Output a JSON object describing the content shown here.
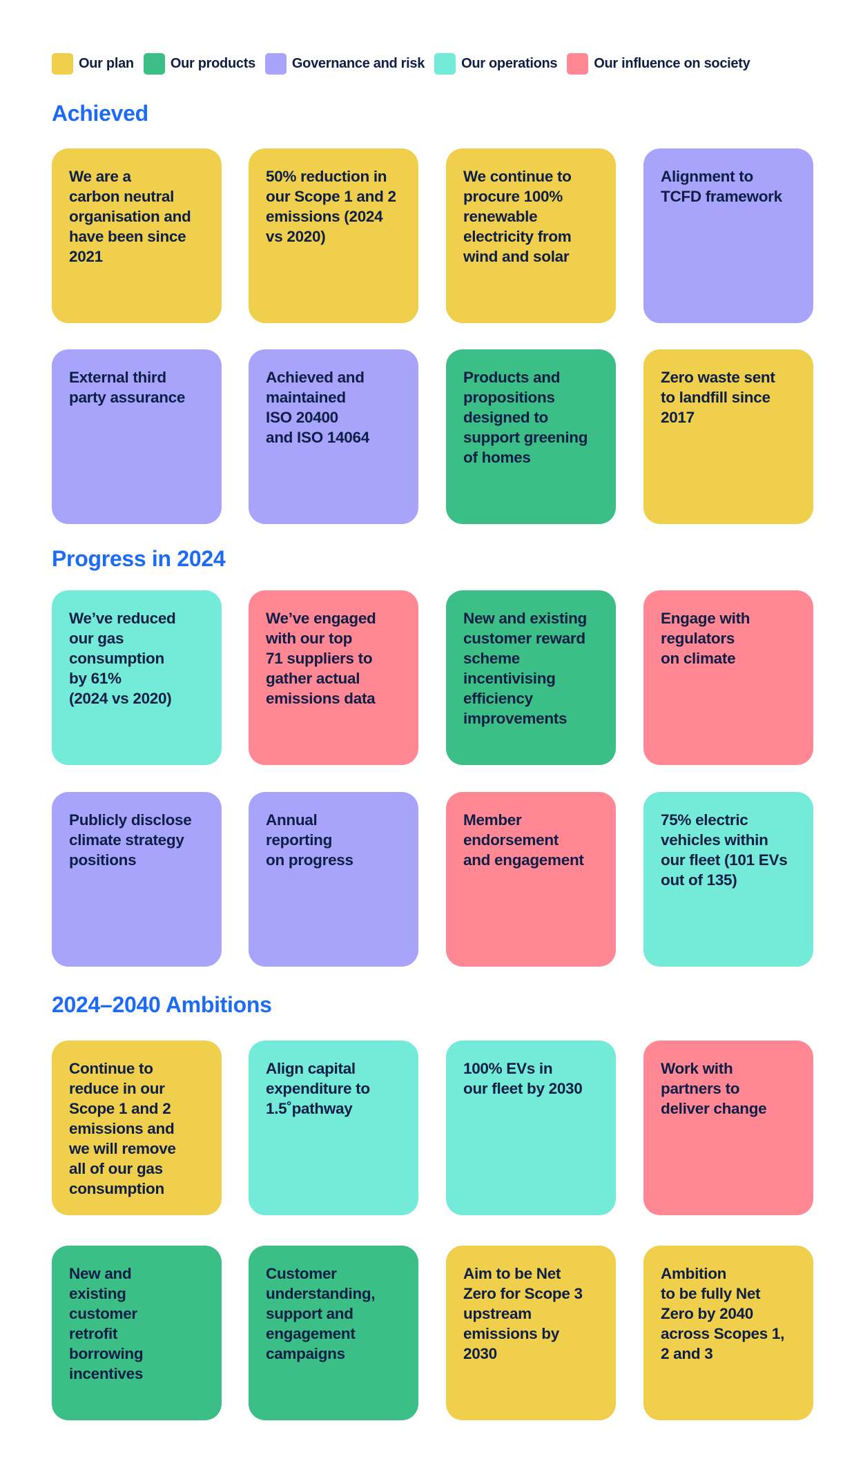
{
  "colors": {
    "plan": "#f0cf4d",
    "products": "#3bbf87",
    "governance": "#a8a4fc",
    "operations": "#74ead9",
    "influence": "#ff8894",
    "heading": "#1c6bf5",
    "text": "#0e1e45"
  },
  "legend": [
    {
      "label": "Our plan",
      "key": "plan"
    },
    {
      "label": "Our products",
      "key": "products"
    },
    {
      "label": "Governance and risk",
      "key": "governance"
    },
    {
      "label": "Our operations",
      "key": "operations"
    },
    {
      "label": "Our influence on society",
      "key": "influence"
    }
  ],
  "sections": [
    {
      "title": "Achieved",
      "cards": [
        {
          "text": "We are a\ncarbon neutral\norganisation and\nhave been since\n2021",
          "key": "plan"
        },
        {
          "text": "50% reduction in\nour Scope 1 and 2\nemissions (2024\nvs 2020)",
          "key": "plan"
        },
        {
          "text": "We continue to\nprocure 100%\nrenewable\nelectricity from\nwind and solar",
          "key": "plan"
        },
        {
          "text": "Alignment to\nTCFD framework",
          "key": "governance"
        },
        {
          "text": "External third\nparty assurance",
          "key": "governance"
        },
        {
          "text": "Achieved and\nmaintained\nISO 20400\nand ISO 14064",
          "key": "governance"
        },
        {
          "text": "Products and\npropositions\ndesigned to\nsupport greening\nof homes",
          "key": "products"
        },
        {
          "text": "Zero waste sent\nto landfill since\n2017",
          "key": "plan"
        }
      ]
    },
    {
      "title": "Progress in 2024",
      "cards": [
        {
          "text": "We’ve reduced\nour gas\nconsumption\nby 61%\n(2024 vs 2020)",
          "key": "operations"
        },
        {
          "text": "We’ve engaged\nwith our top\n71 suppliers to\ngather actual\nemissions data",
          "key": "influence"
        },
        {
          "text": "New and existing\ncustomer reward\nscheme\nincentivising\nefficiency\nimprovements",
          "key": "products"
        },
        {
          "text": "Engage with\nregulators\non climate",
          "key": "influence"
        },
        {
          "text": "Publicly disclose\nclimate strategy\npositions",
          "key": "governance"
        },
        {
          "text": "Annual\nreporting\non progress",
          "key": "governance"
        },
        {
          "text": "Member\nendorsement\nand engagement",
          "key": "influence"
        },
        {
          "text": "75% electric\nvehicles within\nour fleet (101 EVs\nout of 135)",
          "key": "operations"
        }
      ]
    },
    {
      "title": "2024–2040 Ambitions",
      "cards": [
        {
          "text": "Continue to\nreduce in our\nScope 1 and 2\nemissions and\nwe will remove\nall of our gas\nconsumption",
          "key": "plan"
        },
        {
          "text": "Align capital\nexpenditure to\n1.5˚pathway",
          "key": "operations"
        },
        {
          "text": "100% EVs in\nour fleet by 2030",
          "key": "operations"
        },
        {
          "text": "Work with\npartners to\ndeliver change",
          "key": "influence"
        },
        {
          "text": "New and\nexisting\ncustomer\nretrofit\nborrowing\nincentives",
          "key": "products"
        },
        {
          "text": "Customer\nunderstanding,\nsupport and\nengagement\ncampaigns",
          "key": "products"
        },
        {
          "text": "Aim to be Net\nZero for Scope 3\nupstream\nemissions by\n2030",
          "key": "plan"
        },
        {
          "text": "Ambition\nto be fully Net\nZero by 2040\nacross Scopes 1,\n2 and 3",
          "key": "plan"
        }
      ]
    }
  ]
}
